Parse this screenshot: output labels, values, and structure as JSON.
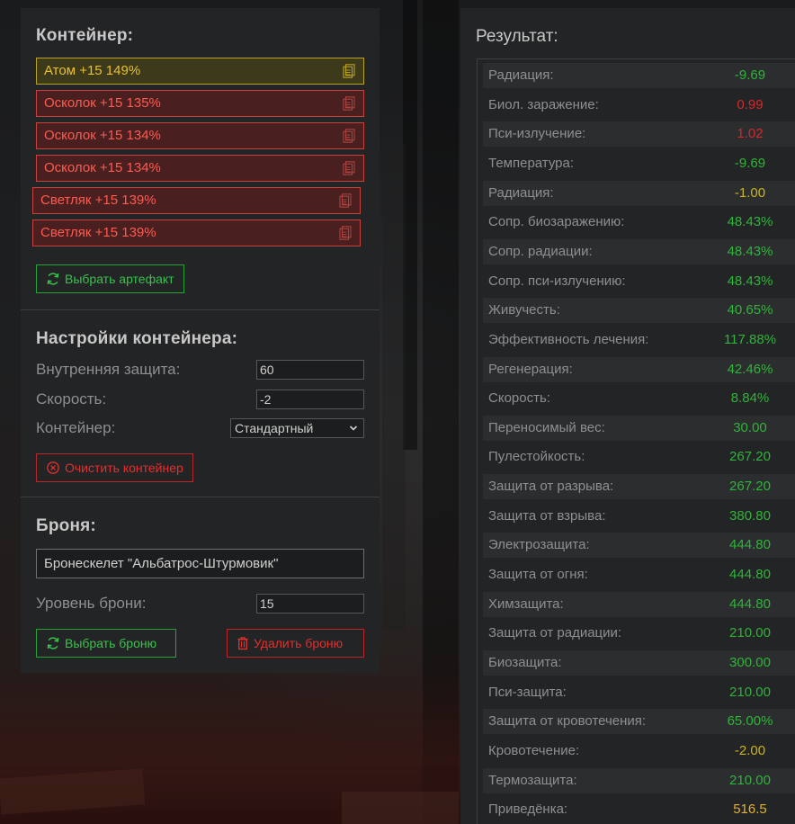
{
  "container": {
    "title": "Контейнер:",
    "artifacts": [
      {
        "label": "Атом +15 149%",
        "variant": "yellow"
      },
      {
        "label": "Осколок +15 135%",
        "variant": "red"
      },
      {
        "label": "Осколок +15 134%",
        "variant": "red"
      },
      {
        "label": "Осколок +15 134%",
        "variant": "red"
      },
      {
        "label": "Светляк +15 139%",
        "variant": "red"
      },
      {
        "label": "Светляк +15 139%",
        "variant": "red"
      }
    ],
    "select_artifact_label": "Выбрать артефакт"
  },
  "settings": {
    "title": "Настройки контейнера:",
    "inner_protection_label": "Внутренняя защита:",
    "inner_protection_value": "60",
    "speed_label": "Скорость:",
    "speed_value": "-2",
    "container_label": "Контейнер:",
    "container_value": "Стандартный",
    "clear_label": "Очистить контейнер"
  },
  "armor": {
    "title": "Броня:",
    "name": "Бронескелет \"Альбатрос-Штурмовик\"",
    "level_label": "Уровень брони:",
    "level_value": "15",
    "select_label": "Выбрать броню",
    "delete_label": "Удалить броню"
  },
  "result": {
    "title": "Результат:",
    "rows": [
      {
        "label": "Радиация:",
        "value": "-9.69",
        "color": "green"
      },
      {
        "label": "Биол. заражение:",
        "value": "0.99",
        "color": "red"
      },
      {
        "label": "Пси-излучение:",
        "value": "1.02",
        "color": "red"
      },
      {
        "label": "Температура:",
        "value": "-9.69",
        "color": "green"
      },
      {
        "label": "Радиация:",
        "value": "-1.00",
        "color": "yellow"
      },
      {
        "label": "Сопр. биозаражению:",
        "value": "48.43%",
        "color": "green"
      },
      {
        "label": "Сопр. радиации:",
        "value": "48.43%",
        "color": "green"
      },
      {
        "label": "Сопр. пси-излучению:",
        "value": "48.43%",
        "color": "green"
      },
      {
        "label": "Живучесть:",
        "value": "40.65%",
        "color": "green"
      },
      {
        "label": "Эффективность лечения:",
        "value": "117.88%",
        "color": "green"
      },
      {
        "label": "Регенерация:",
        "value": "42.46%",
        "color": "green"
      },
      {
        "label": "Скорость:",
        "value": "8.84%",
        "color": "green"
      },
      {
        "label": "Переносимый вес:",
        "value": "30.00",
        "color": "green"
      },
      {
        "label": "Пулестойкость:",
        "value": "267.20",
        "color": "green"
      },
      {
        "label": "Защита от разрыва:",
        "value": "267.20",
        "color": "green"
      },
      {
        "label": "Защита от взрыва:",
        "value": "380.80",
        "color": "green"
      },
      {
        "label": "Электрозащита:",
        "value": "444.80",
        "color": "green"
      },
      {
        "label": "Защита от огня:",
        "value": "444.80",
        "color": "green"
      },
      {
        "label": "Химзащита:",
        "value": "444.80",
        "color": "green"
      },
      {
        "label": "Защита от радиации:",
        "value": "210.00",
        "color": "green"
      },
      {
        "label": "Биозащита:",
        "value": "300.00",
        "color": "green"
      },
      {
        "label": "Пси-защита:",
        "value": "210.00",
        "color": "green"
      },
      {
        "label": "Защита от кровотечения:",
        "value": "65.00%",
        "color": "green"
      },
      {
        "label": "Кровотечение:",
        "value": "-2.00",
        "color": "yellow"
      },
      {
        "label": "Термозащита:",
        "value": "210.00",
        "color": "green"
      },
      {
        "label": "Приведёнка:",
        "value": "516.5",
        "color": "gold"
      }
    ]
  },
  "colors": {
    "green": "#2fb43a",
    "red": "#d6282a",
    "yellow": "#c9b51b",
    "gold": "#e0b231"
  },
  "icons": {
    "artifact_action": "document-icon",
    "select": "refresh-icon",
    "clear": "close-circle-icon",
    "delete": "trash-icon",
    "dropdown": "chevron-down-icon"
  }
}
